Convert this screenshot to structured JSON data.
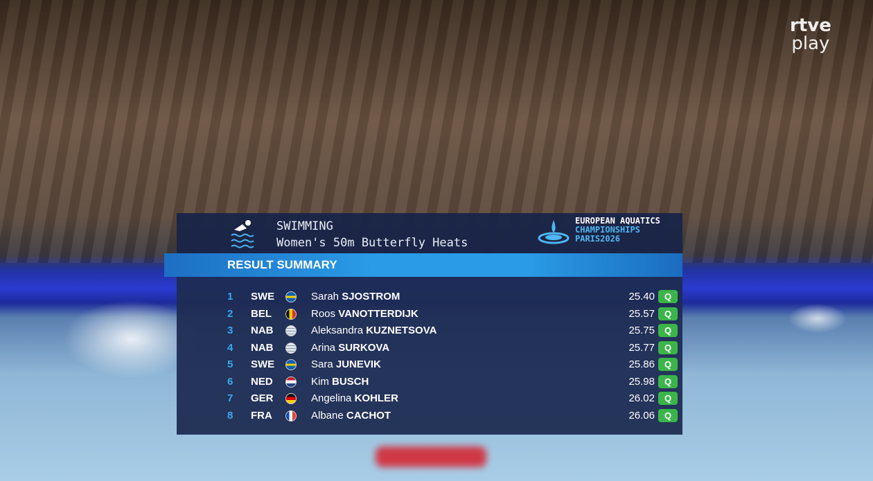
{
  "broadcaster": {
    "line1": "rtve",
    "line2": "play"
  },
  "header": {
    "sport": "SWIMMING",
    "event": "Women's 50m Butterfly Heats",
    "championship": {
      "line1": "EUROPEAN AQUATICS",
      "line2": "CHAMPIONSHIPS",
      "line3": "PARIS2026"
    }
  },
  "table": {
    "title": "RESULT SUMMARY",
    "rows": [
      [
        "1",
        "SWE",
        "Sarah",
        "SJOSTROM",
        "25.40",
        "Q"
      ],
      [
        "2",
        "BEL",
        "Roos",
        "VANOTTERDIJK",
        "25.57",
        "Q"
      ],
      [
        "3",
        "NAB",
        "Aleksandra",
        "KUZNETSOVA",
        "25.75",
        "Q"
      ],
      [
        "4",
        "NAB",
        "Arina",
        "SURKOVA",
        "25.77",
        "Q"
      ],
      [
        "5",
        "SWE",
        "Sara",
        "JUNEVIK",
        "25.86",
        "Q"
      ],
      [
        "6",
        "NED",
        "Kim",
        "BUSCH",
        "25.98",
        "Q"
      ],
      [
        "7",
        "GER",
        "Angelina",
        "KOHLER",
        "26.02",
        "Q"
      ],
      [
        "8",
        "FRA",
        "Albane",
        "CACHOT",
        "26.06",
        "Q"
      ]
    ]
  }
}
